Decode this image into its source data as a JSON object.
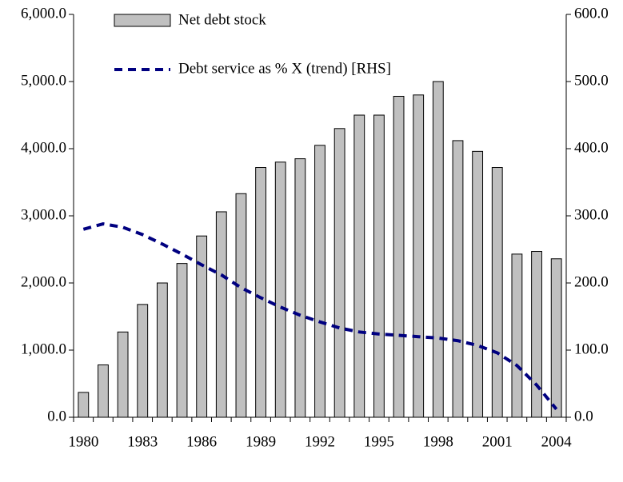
{
  "chart_data": {
    "type": "bar_line",
    "categories": [
      "1980",
      null,
      null,
      "1983",
      null,
      null,
      "1986",
      null,
      null,
      "1989",
      null,
      null,
      "1992",
      null,
      null,
      "1995",
      null,
      null,
      "1998",
      null,
      null,
      "2001",
      null,
      null,
      "2004"
    ],
    "series": [
      {
        "name": "Net debt stock",
        "color": "#c0c0c0",
        "type": "bar",
        "values": [
          370,
          780,
          1270,
          1680,
          2000,
          2290,
          2700,
          3060,
          3330,
          3720,
          3800,
          3850,
          4050,
          4300,
          4500,
          4500,
          4780,
          4800,
          5000,
          4120,
          3960,
          3720,
          2430,
          2470,
          2360
        ]
      },
      {
        "name": "Debt service as % X (trend) [RHS]",
        "color": "#000080",
        "type": "line",
        "axis": "y2",
        "values": [
          280,
          288,
          283,
          272,
          258,
          243,
          227,
          212,
          193,
          178,
          164,
          152,
          142,
          133,
          127,
          124,
          122,
          120,
          118,
          114,
          107,
          96,
          77,
          48,
          12
        ]
      }
    ],
    "ylim": [
      0,
      6000
    ],
    "yticks": [
      {
        "value": 0,
        "label": "0.0"
      },
      {
        "value": 1000,
        "label": "1,000.0"
      },
      {
        "value": 2000,
        "label": "2,000.0"
      },
      {
        "value": 3000,
        "label": "3,000.0"
      },
      {
        "value": 4000,
        "label": "4,000.0"
      },
      {
        "value": 5000,
        "label": "5,000.0"
      },
      {
        "value": 6000,
        "label": "6,000.0"
      }
    ],
    "y2lim": [
      0,
      600
    ],
    "y2ticks": [
      {
        "value": 0,
        "label": "0.0"
      },
      {
        "value": 100,
        "label": "100.0"
      },
      {
        "value": 200,
        "label": "200.0"
      },
      {
        "value": 300,
        "label": "300.0"
      },
      {
        "value": 400,
        "label": "400.0"
      },
      {
        "value": 500,
        "label": "500.0"
      },
      {
        "value": 600,
        "label": "600.0"
      }
    ],
    "legend": "upper left"
  }
}
